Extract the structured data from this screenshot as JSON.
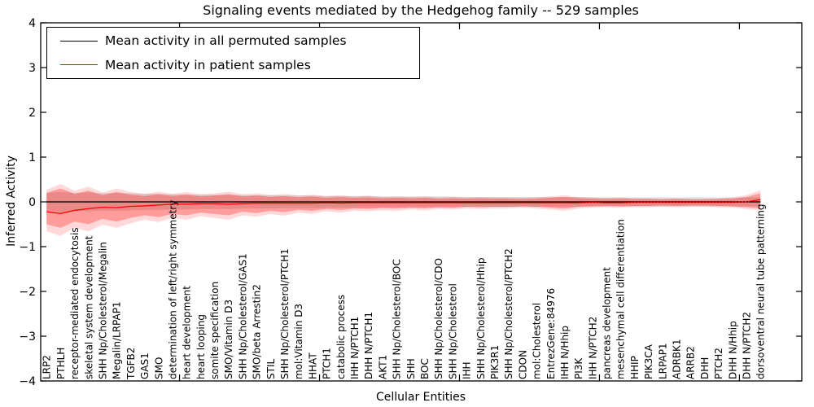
{
  "figure": {
    "title": "Signaling events mediated by the Hedgehog family -- 529 samples",
    "xlabel": "Cellular Entities",
    "ylabel": "Inferred Activity"
  },
  "legend": {
    "items": [
      {
        "label": "Mean activity in all permuted samples",
        "color": "#000000"
      },
      {
        "label": "Mean activity in patient samples",
        "color": "#ff0000"
      }
    ]
  },
  "axes": {
    "y_tick_labels": [
      "4",
      "3",
      "2",
      "1",
      "0",
      "−1",
      "−2",
      "−3",
      "−4"
    ],
    "y_tick_values": [
      4,
      3,
      2,
      1,
      0,
      -1,
      -2,
      -3,
      -4
    ]
  },
  "colors": {
    "permuted_line": "#000000",
    "patient_line": "#ff0000",
    "patient_band": "#ff0000",
    "permuted_band": "#dcdcdc",
    "zero_line": "#000000"
  },
  "chart_data": {
    "type": "line",
    "title": "Signaling events mediated by the Hedgehog family -- 529 samples",
    "xlabel": "Cellular Entities",
    "ylabel": "Inferred Activity",
    "ylim": [
      -4,
      4
    ],
    "grid": false,
    "legend_position": "upper left",
    "categories": [
      "LRP2",
      "PTHLH",
      "receptor-mediated endocytosis",
      "skeletal system development",
      "SHH Np/Cholesterol/Megalin",
      "Megalin/LRPAP1",
      "TGFB2",
      "GAS1",
      "SMO",
      "determination of left/right symmetry",
      "heart development",
      "heart looping",
      "somite specification",
      "SMO/Vitamin D3",
      "SHH Np/Cholesterol/GAS1",
      "SMO/beta Arrestin2",
      "STIL",
      "SHH Np/Cholesterol/PTCH1",
      "mol:Vitamin D3",
      "HHAT",
      "PTCH1",
      "catabolic process",
      "IHH N/PTCH1",
      "DHH N/PTCH1",
      "AKT1",
      "SHH Np/Cholesterol/BOC",
      "SHH",
      "BOC",
      "SHH Np/Cholesterol/CDO",
      "SHH Np/Cholesterol",
      "IHH",
      "SHH Np/Cholesterol/Hhip",
      "PIK3R1",
      "SHH Np/Cholesterol/PTCH2",
      "CDON",
      "mol:Cholesterol",
      "EntrezGene:84976",
      "IHH N/Hhip",
      "PI3K",
      "IHH N/PTCH2",
      "pancreas development",
      "mesenchymal cell differentiation",
      "HHIP",
      "PIK3CA",
      "LRPAP1",
      "ADRBK1",
      "ARRB2",
      "DHH",
      "PTCH2",
      "DHH N/Hhip",
      "DHH N/PTCH2",
      "dorsoventral neural tube patterning"
    ],
    "series": [
      {
        "name": "Mean activity in all permuted samples",
        "color": "#000000",
        "style": "solid",
        "values": [
          0,
          0,
          0,
          0,
          0,
          0,
          0,
          0,
          0,
          0,
          0,
          0,
          0,
          0,
          0,
          0,
          0,
          0,
          0,
          0,
          0,
          0,
          0,
          0,
          0,
          0,
          0,
          0,
          0,
          0,
          0,
          0,
          0,
          0,
          0,
          0,
          0,
          0,
          0,
          0,
          0,
          0,
          0,
          0,
          0,
          0,
          0,
          0,
          0,
          0,
          0,
          0
        ]
      },
      {
        "name": "Mean activity in patient samples",
        "color": "#ff0000",
        "style": "solid",
        "values": [
          -0.22,
          -0.26,
          -0.19,
          -0.15,
          -0.12,
          -0.13,
          -0.1,
          -0.09,
          -0.07,
          -0.05,
          -0.05,
          -0.04,
          -0.04,
          -0.05,
          -0.04,
          -0.03,
          -0.03,
          -0.03,
          -0.03,
          -0.03,
          -0.02,
          -0.03,
          -0.02,
          -0.02,
          -0.02,
          -0.02,
          -0.02,
          -0.02,
          -0.02,
          -0.02,
          -0.02,
          -0.02,
          -0.02,
          -0.02,
          -0.02,
          -0.02,
          -0.02,
          -0.02,
          -0.02,
          -0.01,
          -0.02,
          -0.02,
          -0.01,
          -0.01,
          -0.01,
          -0.01,
          -0.01,
          -0.01,
          -0.01,
          -0.01,
          0.0,
          0.05
        ]
      },
      {
        "name": "zero reference",
        "color": "#000000",
        "style": "dotted",
        "values": [
          0,
          0,
          0,
          0,
          0,
          0,
          0,
          0,
          0,
          0,
          0,
          0,
          0,
          0,
          0,
          0,
          0,
          0,
          0,
          0,
          0,
          0,
          0,
          0,
          0,
          0,
          0,
          0,
          0,
          0,
          0,
          0,
          0,
          0,
          0,
          0,
          0,
          0,
          0,
          0,
          0,
          0,
          0,
          0,
          0,
          0,
          0,
          0,
          0,
          0,
          0,
          0
        ]
      }
    ],
    "bands": [
      {
        "name": "permuted samples spread",
        "color": "#dcdcdc",
        "upper": [
          0.2,
          0.22,
          0.2,
          0.21,
          0.19,
          0.2,
          0.19,
          0.18,
          0.18,
          0.17,
          0.17,
          0.16,
          0.16,
          0.16,
          0.15,
          0.15,
          0.15,
          0.14,
          0.14,
          0.14,
          0.13,
          0.13,
          0.13,
          0.13,
          0.12,
          0.12,
          0.12,
          0.12,
          0.12,
          0.12,
          0.11,
          0.11,
          0.11,
          0.11,
          0.11,
          0.11,
          0.11,
          0.11,
          0.11,
          0.1,
          0.1,
          0.1,
          0.1,
          0.1,
          0.1,
          0.1,
          0.1,
          0.1,
          0.1,
          0.1,
          0.1,
          0.1
        ],
        "lower": [
          -0.2,
          -0.22,
          -0.2,
          -0.21,
          -0.19,
          -0.2,
          -0.19,
          -0.18,
          -0.18,
          -0.17,
          -0.17,
          -0.16,
          -0.16,
          -0.16,
          -0.15,
          -0.15,
          -0.15,
          -0.14,
          -0.14,
          -0.14,
          -0.13,
          -0.13,
          -0.13,
          -0.13,
          -0.12,
          -0.12,
          -0.12,
          -0.12,
          -0.12,
          -0.12,
          -0.11,
          -0.11,
          -0.11,
          -0.11,
          -0.11,
          -0.11,
          -0.11,
          -0.11,
          -0.11,
          -0.1,
          -0.1,
          -0.1,
          -0.1,
          -0.1,
          -0.1,
          -0.1,
          -0.1,
          -0.1,
          -0.1,
          -0.1,
          -0.1,
          -0.1
        ]
      },
      {
        "name": "patient samples spread outer",
        "color": "#ff0000",
        "upper": [
          0.27,
          0.4,
          0.25,
          0.34,
          0.21,
          0.3,
          0.22,
          0.18,
          0.23,
          0.18,
          0.22,
          0.17,
          0.19,
          0.23,
          0.17,
          0.19,
          0.15,
          0.18,
          0.14,
          0.16,
          0.13,
          0.15,
          0.12,
          0.14,
          0.11,
          0.12,
          0.11,
          0.12,
          0.1,
          0.11,
          0.1,
          0.11,
          0.1,
          0.1,
          0.09,
          0.1,
          0.12,
          0.15,
          0.11,
          0.1,
          0.09,
          0.1,
          0.08,
          0.08,
          0.07,
          0.08,
          0.07,
          0.07,
          0.08,
          0.1,
          0.15,
          0.26
        ],
        "lower": [
          -0.66,
          -0.76,
          -0.58,
          -0.66,
          -0.51,
          -0.58,
          -0.48,
          -0.4,
          -0.45,
          -0.36,
          -0.4,
          -0.32,
          -0.36,
          -0.4,
          -0.3,
          -0.33,
          -0.27,
          -0.31,
          -0.24,
          -0.27,
          -0.21,
          -0.24,
          -0.2,
          -0.21,
          -0.19,
          -0.2,
          -0.17,
          -0.19,
          -0.16,
          -0.17,
          -0.15,
          -0.16,
          -0.15,
          -0.15,
          -0.13,
          -0.15,
          -0.17,
          -0.2,
          -0.15,
          -0.13,
          -0.12,
          -0.13,
          -0.12,
          -0.12,
          -0.11,
          -0.12,
          -0.11,
          -0.11,
          -0.12,
          -0.13,
          -0.16,
          -0.19
        ]
      },
      {
        "name": "patient samples spread inner",
        "color": "#ff0000",
        "upper": [
          0.2,
          0.3,
          0.18,
          0.25,
          0.15,
          0.22,
          0.16,
          0.13,
          0.17,
          0.13,
          0.16,
          0.12,
          0.14,
          0.17,
          0.12,
          0.14,
          0.11,
          0.13,
          0.1,
          0.12,
          0.09,
          0.11,
          0.09,
          0.1,
          0.08,
          0.09,
          0.08,
          0.09,
          0.07,
          0.08,
          0.07,
          0.08,
          0.07,
          0.07,
          0.06,
          0.07,
          0.09,
          0.11,
          0.08,
          0.07,
          0.06,
          0.07,
          0.06,
          0.06,
          0.05,
          0.06,
          0.05,
          0.05,
          0.06,
          0.07,
          0.11,
          0.19
        ],
        "lower": [
          -0.5,
          -0.58,
          -0.44,
          -0.5,
          -0.38,
          -0.44,
          -0.36,
          -0.3,
          -0.34,
          -0.27,
          -0.3,
          -0.24,
          -0.27,
          -0.3,
          -0.22,
          -0.25,
          -0.2,
          -0.23,
          -0.18,
          -0.2,
          -0.16,
          -0.18,
          -0.15,
          -0.16,
          -0.14,
          -0.15,
          -0.13,
          -0.14,
          -0.12,
          -0.13,
          -0.11,
          -0.12,
          -0.11,
          -0.11,
          -0.1,
          -0.11,
          -0.13,
          -0.15,
          -0.11,
          -0.1,
          -0.09,
          -0.1,
          -0.09,
          -0.09,
          -0.08,
          -0.09,
          -0.08,
          -0.08,
          -0.09,
          -0.1,
          -0.12,
          -0.14
        ]
      }
    ]
  }
}
